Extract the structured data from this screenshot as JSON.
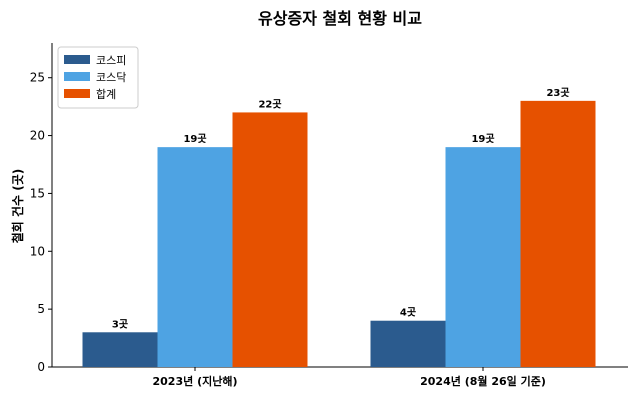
{
  "chart_data": {
    "type": "bar",
    "title": "유상증자 철회 현황 비교",
    "xlabel": "",
    "ylabel": "철회 건수 (곳)",
    "categories": [
      "2023년 (지난해)",
      "2024년 (8월 26일 기준)"
    ],
    "series": [
      {
        "name": "코스피",
        "values": [
          3,
          4
        ],
        "labels": [
          "3곳",
          "4곳"
        ],
        "color": "#2b5b8e"
      },
      {
        "name": "코스닥",
        "values": [
          19,
          19
        ],
        "labels": [
          "19곳",
          "19곳"
        ],
        "color": "#4ea3e3"
      },
      {
        "name": "합계",
        "values": [
          22,
          23
        ],
        "labels": [
          "22곳",
          "23곳"
        ],
        "color": "#e65100"
      }
    ],
    "ylim": [
      0,
      28
    ],
    "yticks": [
      0,
      5,
      10,
      15,
      20,
      25
    ],
    "grid": false,
    "legend": "top-left"
  }
}
